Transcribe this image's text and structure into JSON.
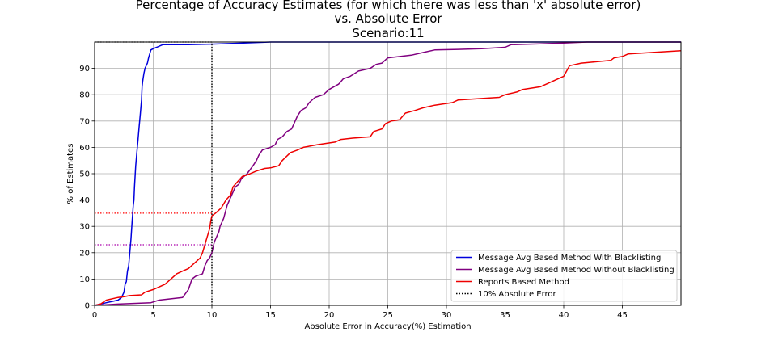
{
  "chart_data": {
    "type": "line",
    "title_lines": [
      "Percentage of Accuracy Estimates (for which there was less than 'x' absolute error)",
      "vs. Absolute Error",
      "Scenario:11"
    ],
    "xlabel": "Absolute Error in Accuracy(%) Estimation",
    "ylabel": "% of Estimates",
    "xlim": [
      0,
      50
    ],
    "ylim": [
      0,
      100
    ],
    "x_ticks": [
      0,
      5,
      10,
      15,
      20,
      25,
      30,
      35,
      40,
      45
    ],
    "y_ticks": [
      0,
      10,
      20,
      30,
      40,
      50,
      60,
      70,
      80,
      90
    ],
    "grid": true,
    "legend_position": "lower-right",
    "series": [
      {
        "name": "Message Avg Based Method With Blacklisting",
        "color": "#0000dd",
        "style": "solid",
        "points": [
          [
            0,
            0
          ],
          [
            0.5,
            0.5
          ],
          [
            1,
            1
          ],
          [
            1.5,
            1.5
          ],
          [
            2,
            2
          ],
          [
            2.3,
            3
          ],
          [
            2.5,
            5
          ],
          [
            2.6,
            8
          ],
          [
            2.7,
            9
          ],
          [
            2.8,
            13
          ],
          [
            2.9,
            15
          ],
          [
            3,
            20
          ],
          [
            3.1,
            25
          ],
          [
            3.2,
            32
          ],
          [
            3.3,
            38
          ],
          [
            3.35,
            40
          ],
          [
            3.4,
            45
          ],
          [
            3.5,
            53
          ],
          [
            3.6,
            58
          ],
          [
            3.7,
            63
          ],
          [
            3.8,
            68
          ],
          [
            3.9,
            73
          ],
          [
            4,
            78
          ],
          [
            4.05,
            83
          ],
          [
            4.1,
            85
          ],
          [
            4.2,
            88
          ],
          [
            4.3,
            90
          ],
          [
            4.4,
            91
          ],
          [
            4.5,
            92
          ],
          [
            4.6,
            94
          ],
          [
            4.8,
            97
          ],
          [
            5,
            97.5
          ],
          [
            5.3,
            98
          ],
          [
            5.8,
            99
          ],
          [
            8,
            99
          ],
          [
            10,
            99.2
          ],
          [
            12,
            99.5
          ],
          [
            15,
            100
          ],
          [
            50,
            100
          ]
        ]
      },
      {
        "name": "Message Avg Based Method Without Blacklisting",
        "color": "#800080",
        "style": "solid",
        "points": [
          [
            0,
            0
          ],
          [
            2,
            0.5
          ],
          [
            4.8,
            1
          ],
          [
            5.5,
            2
          ],
          [
            6.5,
            2.5
          ],
          [
            7.5,
            3
          ],
          [
            8,
            6
          ],
          [
            8.3,
            10
          ],
          [
            8.6,
            11
          ],
          [
            9.2,
            12
          ],
          [
            9.4,
            15
          ],
          [
            9.6,
            17
          ],
          [
            9.8,
            18
          ],
          [
            10,
            20
          ],
          [
            10.2,
            24
          ],
          [
            10.4,
            26
          ],
          [
            10.6,
            28
          ],
          [
            10.7,
            30
          ],
          [
            11,
            33
          ],
          [
            11.3,
            38
          ],
          [
            11.6,
            41
          ],
          [
            11.8,
            43
          ],
          [
            12,
            45
          ],
          [
            12.3,
            46
          ],
          [
            12.5,
            48
          ],
          [
            13,
            50
          ],
          [
            13.5,
            53
          ],
          [
            13.8,
            55
          ],
          [
            14,
            57
          ],
          [
            14.3,
            59
          ],
          [
            15,
            60
          ],
          [
            15.4,
            61
          ],
          [
            15.6,
            63
          ],
          [
            16,
            64
          ],
          [
            16.4,
            66
          ],
          [
            16.8,
            67
          ],
          [
            17,
            69
          ],
          [
            17.3,
            72
          ],
          [
            17.6,
            74
          ],
          [
            18,
            75
          ],
          [
            18.3,
            77
          ],
          [
            18.8,
            79
          ],
          [
            19.5,
            80
          ],
          [
            20,
            82
          ],
          [
            20.8,
            84
          ],
          [
            21.2,
            86
          ],
          [
            21.8,
            87
          ],
          [
            22.5,
            89
          ],
          [
            23.5,
            90
          ],
          [
            24,
            91.5
          ],
          [
            24.5,
            92
          ],
          [
            25,
            94
          ],
          [
            27,
            95
          ],
          [
            28,
            96
          ],
          [
            29,
            97
          ],
          [
            31,
            97.2
          ],
          [
            33,
            97.5
          ],
          [
            35,
            98
          ],
          [
            35.5,
            99
          ],
          [
            38,
            99.3
          ],
          [
            40,
            99.6
          ],
          [
            42,
            100
          ],
          [
            50,
            100
          ]
        ]
      },
      {
        "name": "Reports Based Method",
        "color": "#ee0000",
        "style": "solid",
        "points": [
          [
            0,
            0
          ],
          [
            0.5,
            0.5
          ],
          [
            1,
            2
          ],
          [
            2,
            3
          ],
          [
            2.5,
            3.3
          ],
          [
            3,
            3.7
          ],
          [
            4,
            4
          ],
          [
            4.3,
            5
          ],
          [
            5,
            6
          ],
          [
            6,
            8
          ],
          [
            6.5,
            10
          ],
          [
            7,
            12
          ],
          [
            7.5,
            13
          ],
          [
            8,
            14
          ],
          [
            8.5,
            16
          ],
          [
            9,
            18
          ],
          [
            9.2,
            20
          ],
          [
            9.4,
            23
          ],
          [
            9.6,
            26
          ],
          [
            9.8,
            29
          ],
          [
            9.9,
            32
          ],
          [
            10,
            34
          ],
          [
            10.3,
            35
          ],
          [
            10.8,
            37
          ],
          [
            11.2,
            40
          ],
          [
            11.6,
            42
          ],
          [
            11.8,
            45
          ],
          [
            12.2,
            47
          ],
          [
            12.6,
            49
          ],
          [
            13,
            49.5
          ],
          [
            13.8,
            51
          ],
          [
            14.5,
            52
          ],
          [
            15,
            52.2
          ],
          [
            15.7,
            53
          ],
          [
            16,
            55
          ],
          [
            16.7,
            58
          ],
          [
            17.3,
            59
          ],
          [
            17.8,
            60
          ],
          [
            19,
            61
          ],
          [
            20.5,
            62
          ],
          [
            21,
            63
          ],
          [
            22,
            63.5
          ],
          [
            23.5,
            64
          ],
          [
            23.8,
            66
          ],
          [
            24.5,
            67
          ],
          [
            24.8,
            69
          ],
          [
            25.3,
            70
          ],
          [
            26,
            70.5
          ],
          [
            26.5,
            73
          ],
          [
            27.3,
            74
          ],
          [
            28,
            75
          ],
          [
            29,
            76
          ],
          [
            30.5,
            77
          ],
          [
            31,
            78
          ],
          [
            34.5,
            79
          ],
          [
            35,
            80
          ],
          [
            36,
            81
          ],
          [
            36.5,
            82
          ],
          [
            38,
            83
          ],
          [
            38.5,
            84
          ],
          [
            39,
            85
          ],
          [
            40,
            87
          ],
          [
            40.5,
            91
          ],
          [
            41.5,
            92
          ],
          [
            44,
            93
          ],
          [
            44.3,
            94
          ],
          [
            45,
            94.5
          ],
          [
            45.5,
            95.5
          ],
          [
            50,
            96.7
          ]
        ]
      },
      {
        "name": "10% Absolute Error",
        "color": "#000000",
        "style": "dotted",
        "points": [
          [
            10,
            0
          ],
          [
            10,
            100
          ]
        ]
      }
    ],
    "reference_lines": [
      {
        "color": "#ff0000",
        "points": [
          [
            0,
            35
          ],
          [
            10,
            35
          ]
        ]
      },
      {
        "color": "#aa00aa",
        "points": [
          [
            0,
            23
          ],
          [
            10,
            23
          ]
        ]
      },
      {
        "color": "#000000",
        "points": [
          [
            0,
            100
          ],
          [
            10,
            100
          ]
        ]
      }
    ]
  }
}
